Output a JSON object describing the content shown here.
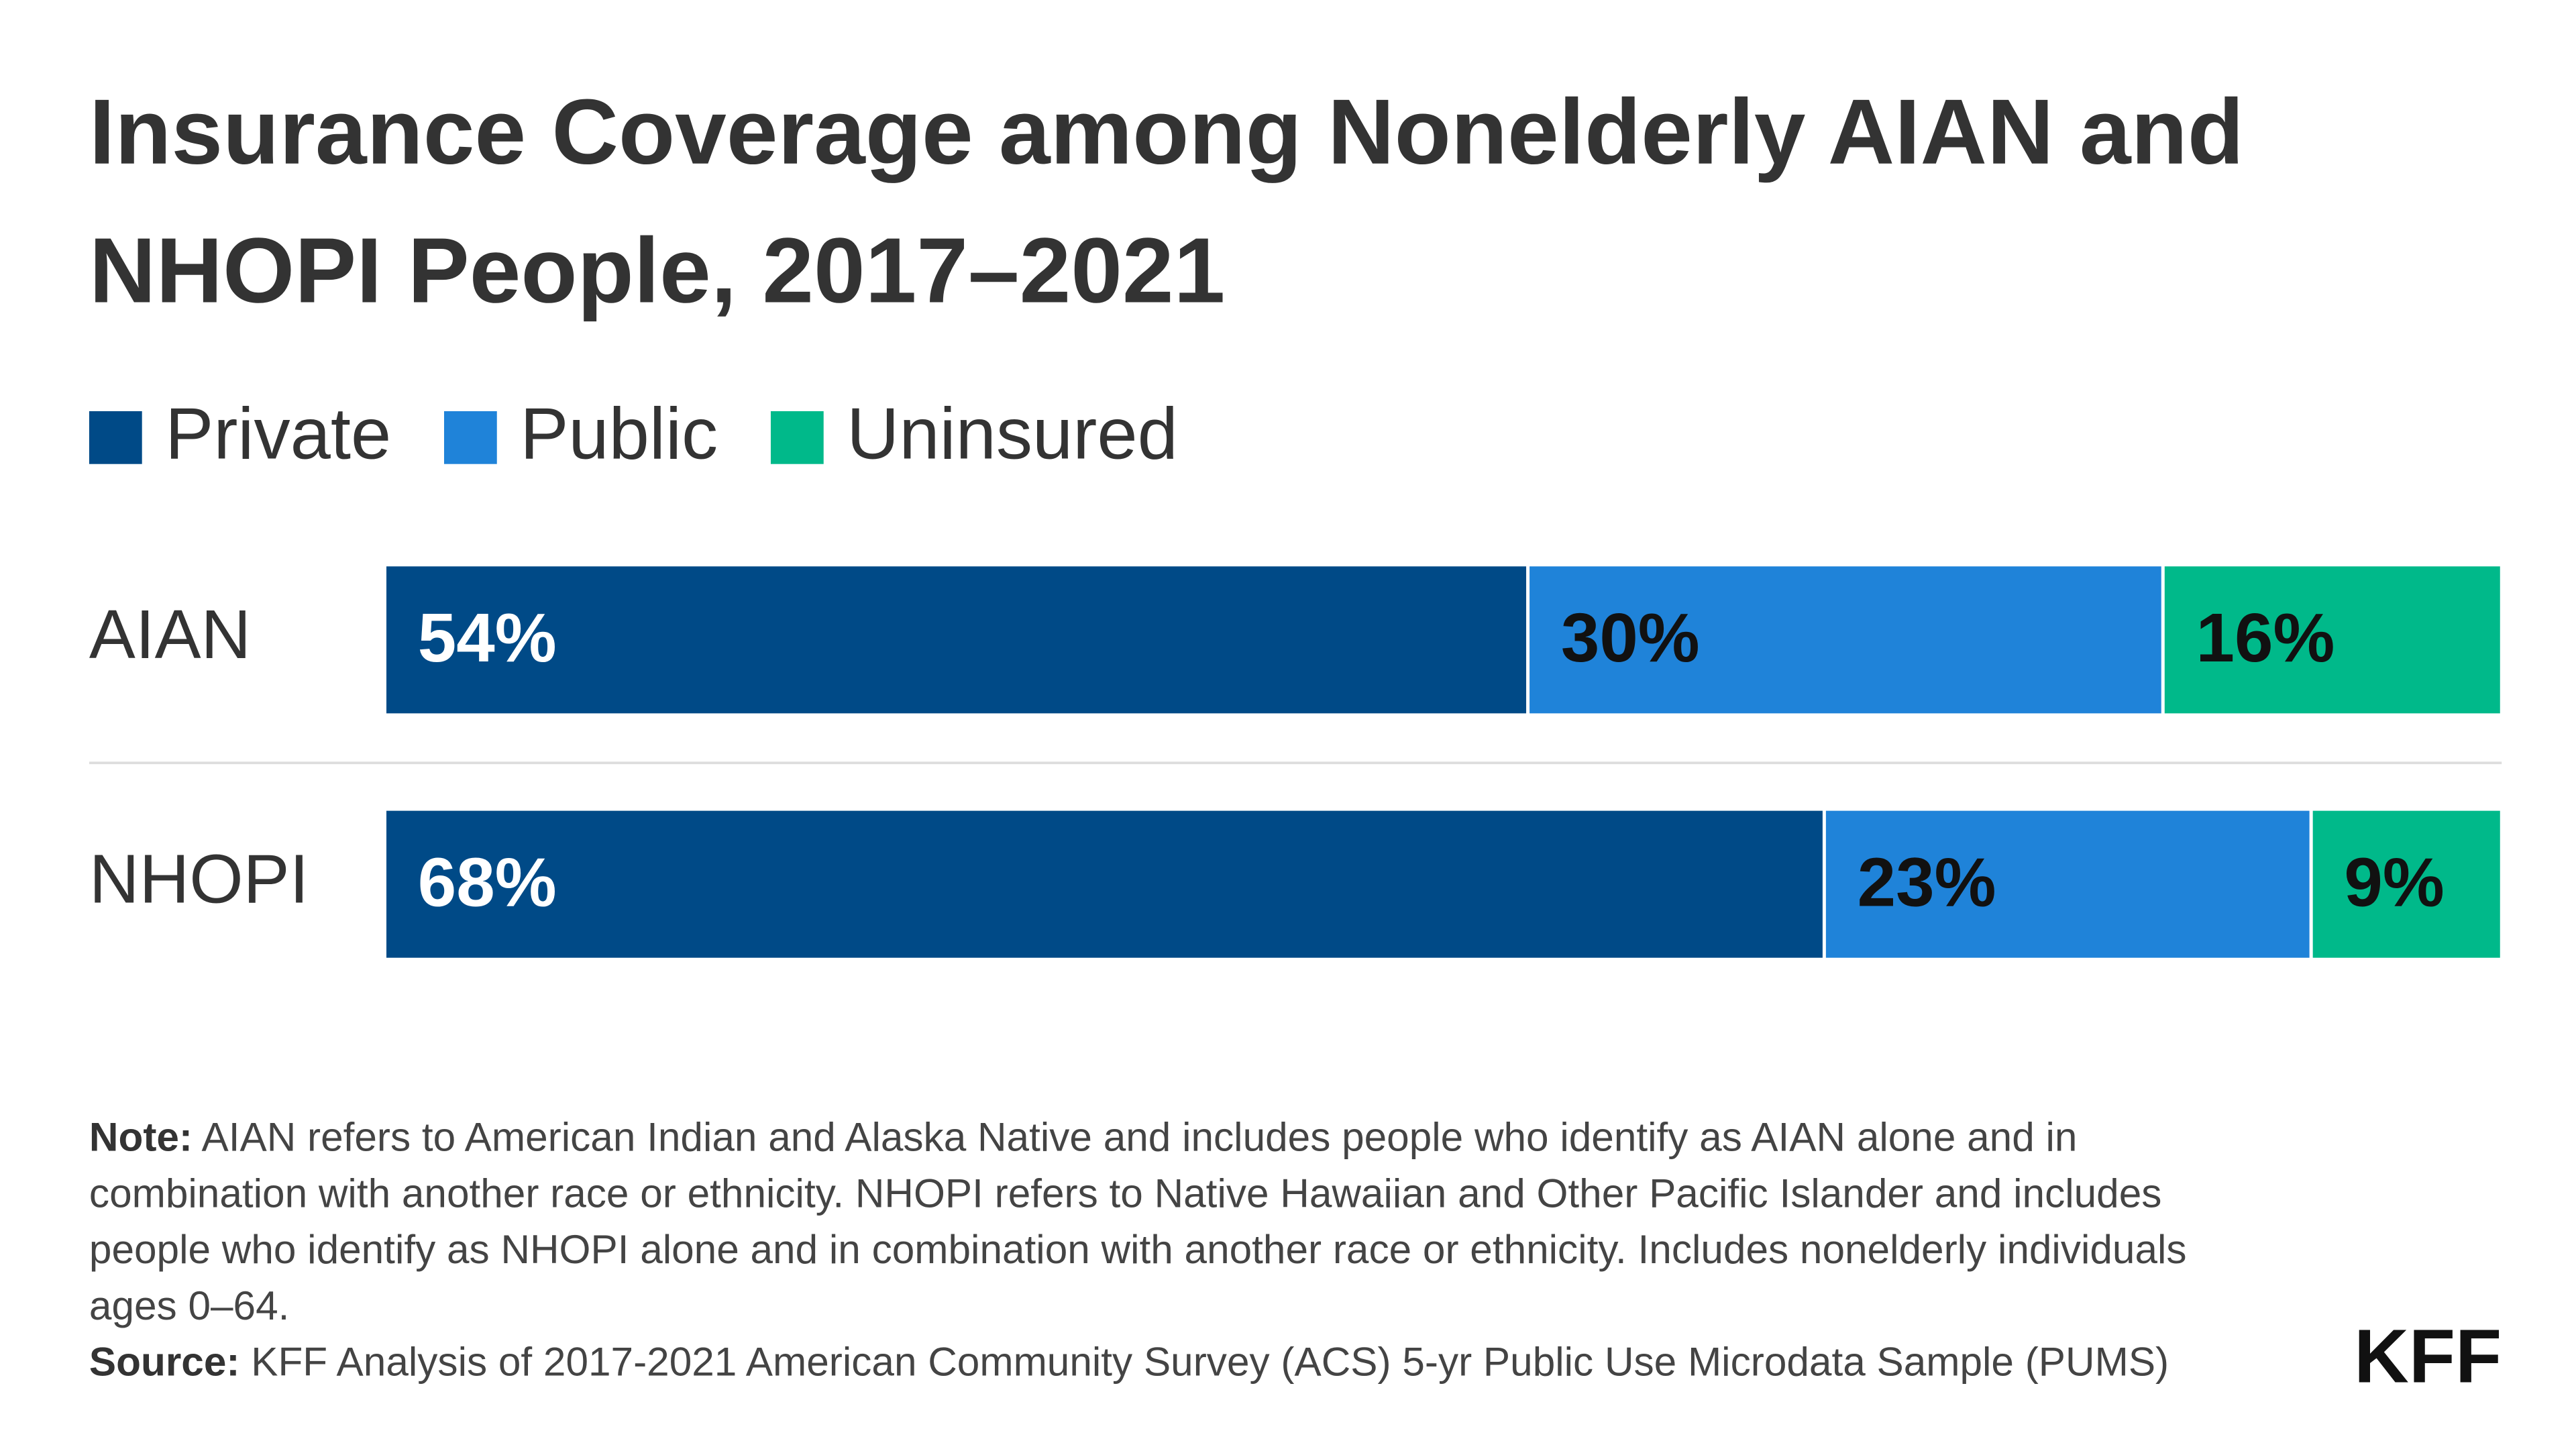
{
  "chart_data": {
    "type": "stacked-bar-horizontal",
    "title": "Insurance Coverage among Nonelderly AIAN and NHOPI People, 2017–2021",
    "categories": [
      "AIAN",
      "NHOPI"
    ],
    "series": [
      {
        "name": "Private",
        "color": "#004a87",
        "values": [
          54,
          68
        ],
        "value_labels": [
          "54%",
          "68%"
        ]
      },
      {
        "name": "Public",
        "color": "#1f83d9",
        "values": [
          30,
          23
        ],
        "value_labels": [
          "30%",
          "23%"
        ]
      },
      {
        "name": "Uninsured",
        "color": "#00b98a",
        "values": [
          16,
          9
        ],
        "value_labels": [
          "16%",
          "9%"
        ]
      }
    ],
    "xlim": [
      0,
      100
    ],
    "legend": "top-left",
    "note_label": "Note:",
    "note": "AIAN refers to American Indian and Alaska Native and includes people who identify as AIAN alone and in combination with another race or ethnicity. NHOPI refers to Native Hawaiian and Other Pacific Islander and includes people who identify as NHOPI alone and in combination with another race or ethnicity. Includes nonelderly individuals ages 0–64.",
    "source_label": "Source:",
    "source": "KFF Analysis of 2017-2021 American Community Survey (ACS) 5-yr Public Use Microdata Sample (PUMS)",
    "logo": "KFF"
  }
}
